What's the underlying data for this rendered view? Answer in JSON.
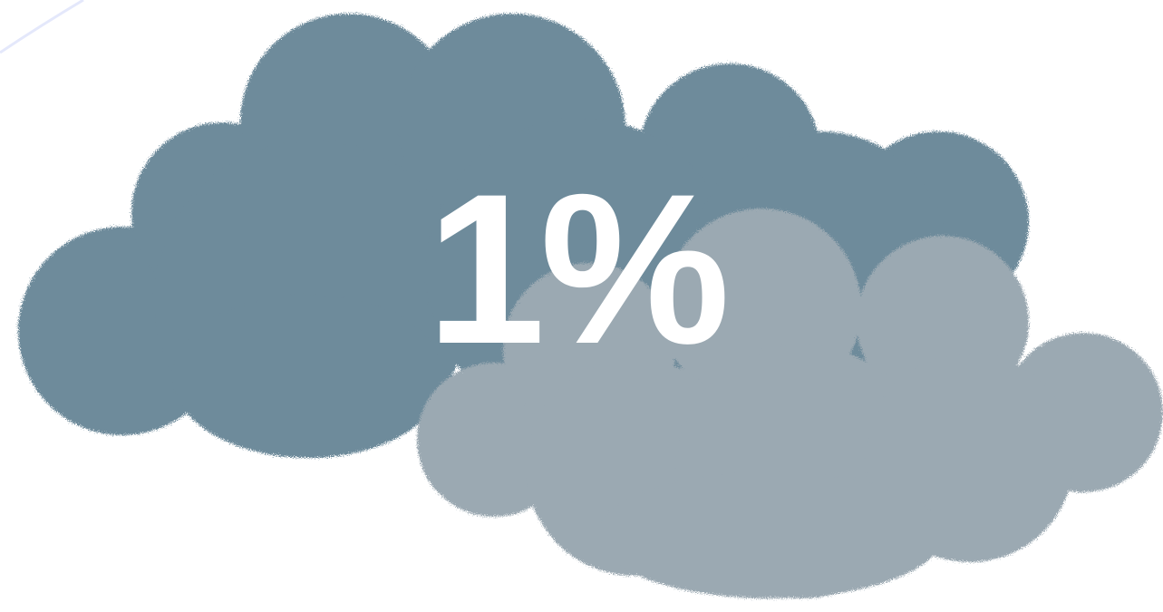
{
  "value_text": "1%",
  "colors": {
    "background": "#ffffff",
    "back_cloud": "#6e8b9b",
    "front_cloud": "#9ba9b2",
    "label": "#ffffff",
    "corner_stroke": "#e4e8fb"
  },
  "icons": {
    "back_cloud": "cloud-icon",
    "front_cloud": "cloud-icon"
  }
}
